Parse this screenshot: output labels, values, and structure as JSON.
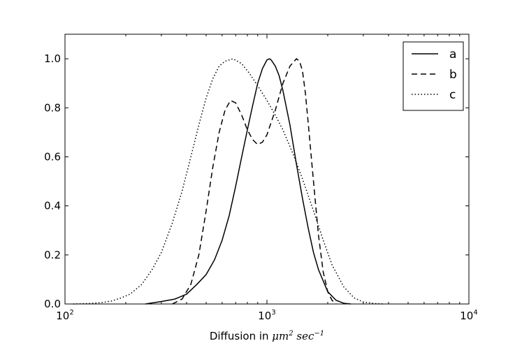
{
  "chart_data": {
    "type": "line",
    "title": "",
    "xlabel_prefix": "Diffusion in ",
    "xlabel_math": "μm",
    "xlabel_math_sup1": "2",
    "xlabel_math2": " sec",
    "xlabel_math_sup2": "−1",
    "ylabel": "",
    "xscale": "log",
    "xlim": [
      100,
      10000
    ],
    "ylim": [
      0,
      1.1
    ],
    "x_ticks": [
      {
        "value": 100,
        "base": "10",
        "exp": "2"
      },
      {
        "value": 1000,
        "base": "10",
        "exp": "3"
      },
      {
        "value": 10000,
        "base": "10",
        "exp": "4"
      }
    ],
    "y_ticks": [
      {
        "value": 0.0,
        "label": "0.0"
      },
      {
        "value": 0.2,
        "label": "0.2"
      },
      {
        "value": 0.4,
        "label": "0.4"
      },
      {
        "value": 0.6,
        "label": "0.6"
      },
      {
        "value": 0.8,
        "label": "0.8"
      },
      {
        "value": 1.0,
        "label": "1.0"
      }
    ],
    "grid": false,
    "legend_position": "top-right",
    "series": [
      {
        "name": "a",
        "style": "solid",
        "x": [
          250,
          300,
          350,
          400,
          450,
          500,
          550,
          600,
          650,
          700,
          750,
          800,
          850,
          900,
          950,
          1000,
          1030,
          1050,
          1100,
          1150,
          1200,
          1300,
          1400,
          1500,
          1600,
          1700,
          1800,
          2000,
          2200,
          2400,
          2600
        ],
        "y": [
          0.0,
          0.01,
          0.02,
          0.04,
          0.08,
          0.12,
          0.18,
          0.26,
          0.36,
          0.48,
          0.6,
          0.71,
          0.81,
          0.9,
          0.96,
          0.995,
          1.0,
          0.995,
          0.97,
          0.93,
          0.87,
          0.73,
          0.57,
          0.43,
          0.31,
          0.21,
          0.14,
          0.05,
          0.015,
          0.003,
          0.0
        ]
      },
      {
        "name": "b",
        "style": "dashed",
        "x": [
          340,
          380,
          420,
          460,
          500,
          540,
          580,
          620,
          660,
          700,
          750,
          800,
          850,
          900,
          950,
          1000,
          1100,
          1200,
          1300,
          1400,
          1450,
          1500,
          1550,
          1600,
          1700,
          1800,
          1900,
          2000,
          2100,
          2200
        ],
        "y": [
          0.0,
          0.02,
          0.08,
          0.2,
          0.38,
          0.56,
          0.7,
          0.79,
          0.83,
          0.82,
          0.77,
          0.71,
          0.67,
          0.65,
          0.66,
          0.69,
          0.79,
          0.9,
          0.97,
          1.0,
          0.99,
          0.95,
          0.86,
          0.74,
          0.5,
          0.28,
          0.13,
          0.05,
          0.015,
          0.0
        ]
      },
      {
        "name": "c",
        "style": "dotted",
        "x": [
          110,
          130,
          150,
          170,
          190,
          210,
          240,
          270,
          300,
          340,
          380,
          420,
          460,
          500,
          540,
          580,
          620,
          680,
          750,
          820,
          900,
          1000,
          1100,
          1200,
          1350,
          1500,
          1700,
          1900,
          2100,
          2400,
          2700,
          3000,
          3400,
          3800
        ],
        "y": [
          0.0,
          0.002,
          0.005,
          0.012,
          0.025,
          0.04,
          0.08,
          0.14,
          0.21,
          0.33,
          0.46,
          0.6,
          0.73,
          0.84,
          0.92,
          0.97,
          0.99,
          1.0,
          0.98,
          0.94,
          0.89,
          0.83,
          0.77,
          0.71,
          0.61,
          0.51,
          0.38,
          0.26,
          0.16,
          0.07,
          0.025,
          0.008,
          0.002,
          0.0
        ]
      }
    ]
  }
}
